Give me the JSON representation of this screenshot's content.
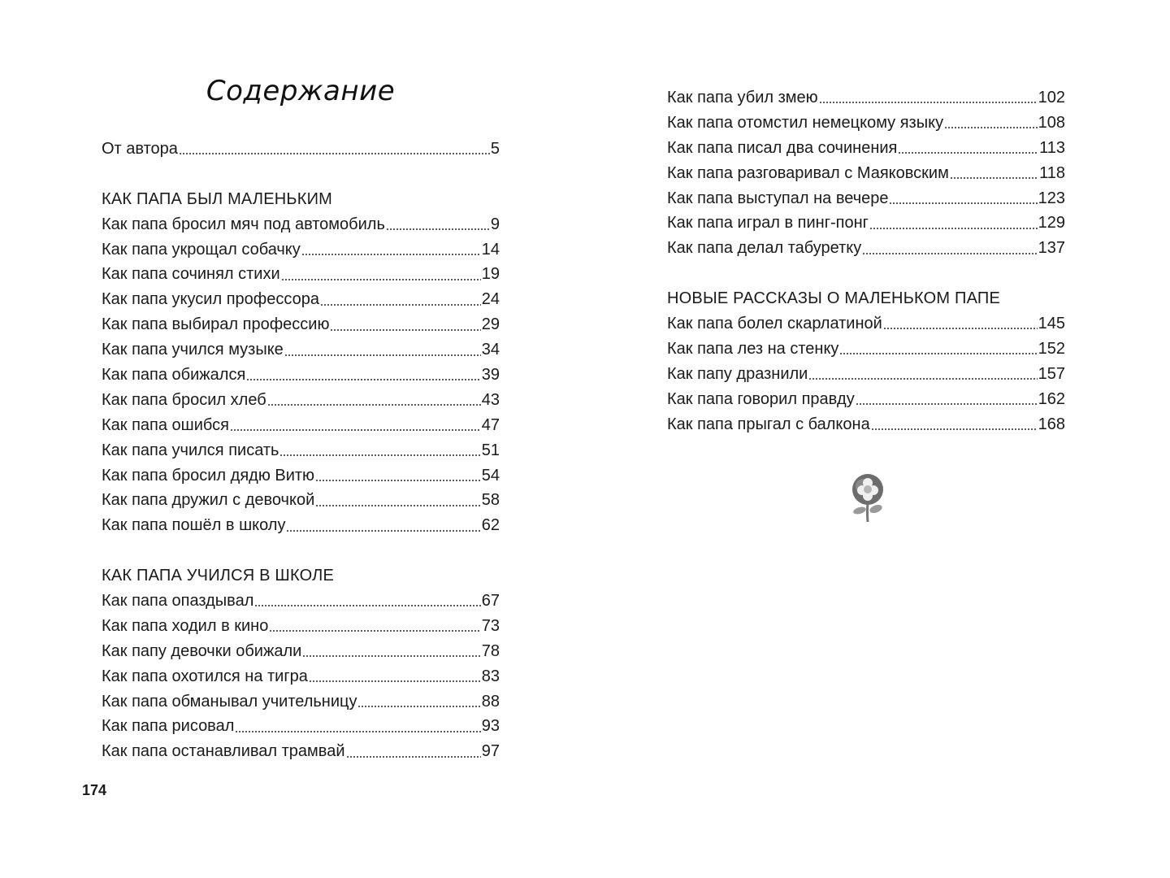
{
  "title": "Содержание",
  "page_number": "174",
  "left": {
    "intro": {
      "label": "От автора",
      "page": "5"
    },
    "section1": {
      "heading": "КАК ПАПА БЫЛ МАЛЕНЬКИМ",
      "items": [
        {
          "label": "Как папа бросил мяч под автомобиль",
          "page": "9"
        },
        {
          "label": "Как папа укрощал собачку",
          "page": "14"
        },
        {
          "label": "Как папа сочинял стихи",
          "page": "19"
        },
        {
          "label": "Как папа укусил профессора",
          "page": "24"
        },
        {
          "label": "Как папа выбирал профессию",
          "page": "29"
        },
        {
          "label": "Как папа учился музыке",
          "page": "34"
        },
        {
          "label": "Как папа обижался",
          "page": "39"
        },
        {
          "label": "Как папа бросил хлеб",
          "page": "43"
        },
        {
          "label": "Как папа ошибся",
          "page": "47"
        },
        {
          "label": "Как папа учился писать",
          "page": "51"
        },
        {
          "label": "Как папа бросил дядю Витю",
          "page": "54"
        },
        {
          "label": "Как папа дружил с девочкой",
          "page": "58"
        },
        {
          "label": "Как папа пошёл в школу",
          "page": "62"
        }
      ]
    },
    "section2": {
      "heading": "КАК ПАПА УЧИЛСЯ В ШКОЛЕ",
      "items": [
        {
          "label": "Как папа опаздывал",
          "page": "67"
        },
        {
          "label": "Как папа ходил в кино",
          "page": "73"
        },
        {
          "label": "Как папу девочки обижали",
          "page": "78"
        },
        {
          "label": "Как папа охотился на тигра",
          "page": "83"
        },
        {
          "label": "Как папа обманывал учительницу",
          "page": "88"
        },
        {
          "label": "Как папа рисовал",
          "page": "93"
        },
        {
          "label": "Как папа останавливал трамвай",
          "page": "97"
        }
      ]
    }
  },
  "right": {
    "items": [
      {
        "label": "Как папа убил змею",
        "page": "102"
      },
      {
        "label": "Как папа отомстил немецкому языку",
        "page": "108"
      },
      {
        "label": "Как папа писал два сочинения",
        "page": "113"
      },
      {
        "label": "Как папа разговаривал с Маяковским",
        "page": "118"
      },
      {
        "label": "Как папа выступал на вечере",
        "page": "123"
      },
      {
        "label": "Как папа играл в пинг-понг",
        "page": "129"
      },
      {
        "label": "Как папа делал табуретку",
        "page": "137"
      }
    ],
    "section3": {
      "heading": "НОВЫЕ РАССКАЗЫ О МАЛЕНЬКОМ ПАПЕ",
      "items": [
        {
          "label": "Как папа болел скарлатиной",
          "page": "145"
        },
        {
          "label": "Как папа лез на стенку",
          "page": "152"
        },
        {
          "label": "Как папу дразнили",
          "page": "157"
        },
        {
          "label": "Как папа говорил правду",
          "page": "162"
        },
        {
          "label": "Как папа прыгал с балкона",
          "page": "168"
        }
      ]
    }
  },
  "decoration": {
    "icon": "flower-icon"
  }
}
